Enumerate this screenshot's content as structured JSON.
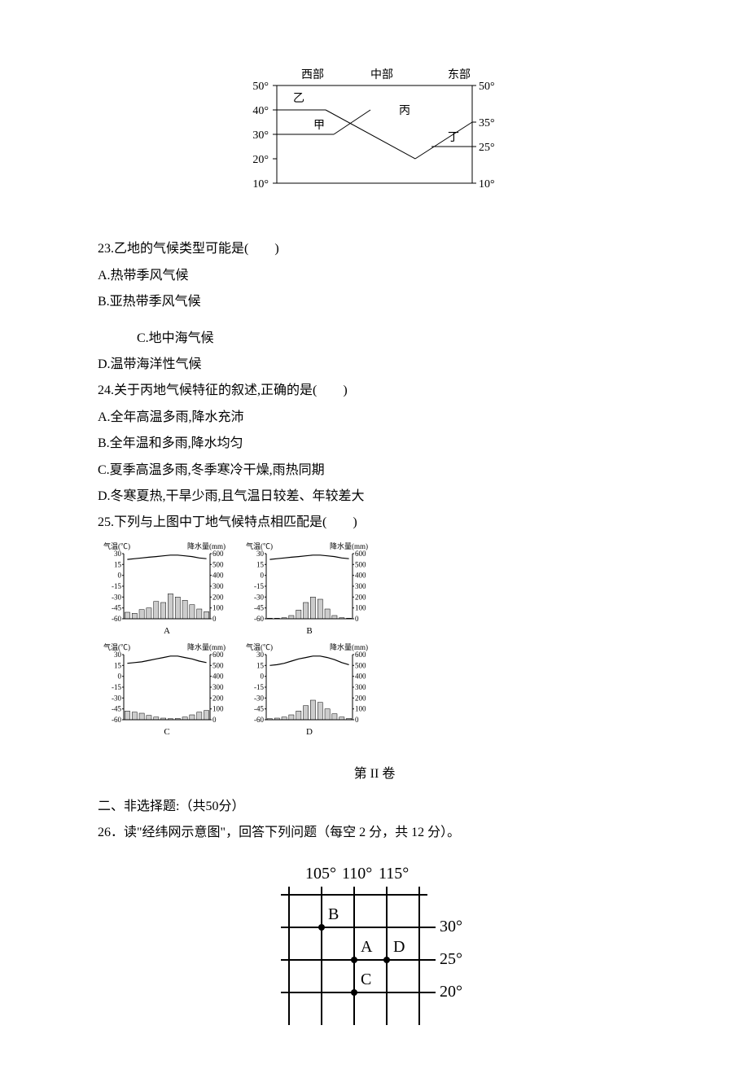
{
  "diagram1": {
    "top_labels": [
      "西部",
      "中部",
      "东部"
    ],
    "left_ticks": [
      "50°",
      "40°",
      "30°",
      "20°",
      "10°"
    ],
    "right_ticks": [
      "50°",
      "35°",
      "25°",
      "10°"
    ],
    "regions": {
      "yi": "乙",
      "jia": "甲",
      "bing": "丙",
      "ding": "丁"
    },
    "stroke": "#000000",
    "font_size": 14
  },
  "q23": {
    "stem": "23.乙地的气候类型可能是(　　)",
    "optA": "A.热带季风气候",
    "optB": "B.亚热带季风气候",
    "optC": "C.地中海气候",
    "optD": "D.温带海洋性气候"
  },
  "q24": {
    "stem": "24.关于丙地气候特征的叙述,正确的是(　　)",
    "optA": "A.全年高温多雨,降水充沛",
    "optB": "B.全年温和多雨,降水均匀",
    "optC": "C.夏季高温多雨,冬季寒冷干燥,雨热同期",
    "optD": "D.冬寒夏热,干旱少雨,且气温日较差、年较差大"
  },
  "q25": {
    "stem": "25.下列与上图中丁地气候特点相匹配是(　　)"
  },
  "climate_charts": {
    "axis_left_label": "气温(℃)",
    "axis_right_label": "降水量(mm)",
    "temp_ticks": [
      "30",
      "15",
      "0",
      "-15",
      "-30",
      "-45",
      "-60"
    ],
    "precip_ticks": [
      "600",
      "500",
      "400",
      "300",
      "200",
      "100",
      "0"
    ],
    "panels": [
      "A",
      "B",
      "C",
      "D"
    ],
    "bar_fill": "#cccccc",
    "bar_stroke": "#000000",
    "line_stroke": "#000000",
    "bg": "#ffffff",
    "font_size": 9,
    "data": {
      "A": {
        "precip": [
          60,
          50,
          85,
          100,
          160,
          150,
          230,
          200,
          170,
          130,
          90,
          65
        ],
        "temp": [
          22,
          23,
          24,
          25,
          26,
          27,
          28,
          28,
          27,
          26,
          24,
          23
        ]
      },
      "B": {
        "precip": [
          5,
          5,
          10,
          30,
          80,
          150,
          200,
          180,
          90,
          30,
          10,
          5
        ],
        "temp": [
          22,
          23,
          24,
          25,
          26,
          27,
          28,
          28,
          27,
          26,
          24,
          23
        ]
      },
      "C": {
        "precip": [
          80,
          70,
          60,
          40,
          25,
          15,
          10,
          12,
          25,
          45,
          70,
          85
        ],
        "temp": [
          18,
          19,
          20,
          22,
          24,
          26,
          28,
          28,
          26,
          24,
          21,
          19
        ]
      },
      "D": {
        "precip": [
          10,
          15,
          25,
          45,
          80,
          130,
          180,
          160,
          100,
          55,
          25,
          12
        ],
        "temp": [
          15,
          16,
          18,
          21,
          24,
          26,
          28,
          28,
          26,
          23,
          19,
          16
        ]
      }
    }
  },
  "section2": {
    "title": "第 II 卷",
    "sub": " 二、非选择题:（共50分）",
    "q26": "26．读\"经纬网示意图\"，回答下列问题（每空 2 分，共 12 分）。"
  },
  "grid_diagram": {
    "lon_labels": [
      "105°",
      "110°",
      "115°"
    ],
    "lat_labels": [
      "30°",
      "25°",
      "20°"
    ],
    "points": {
      "A": "A",
      "B": "B",
      "C": "C",
      "D": "D"
    },
    "font_family": "Times New Roman, serif",
    "font_size": 20,
    "stroke": "#000000"
  }
}
